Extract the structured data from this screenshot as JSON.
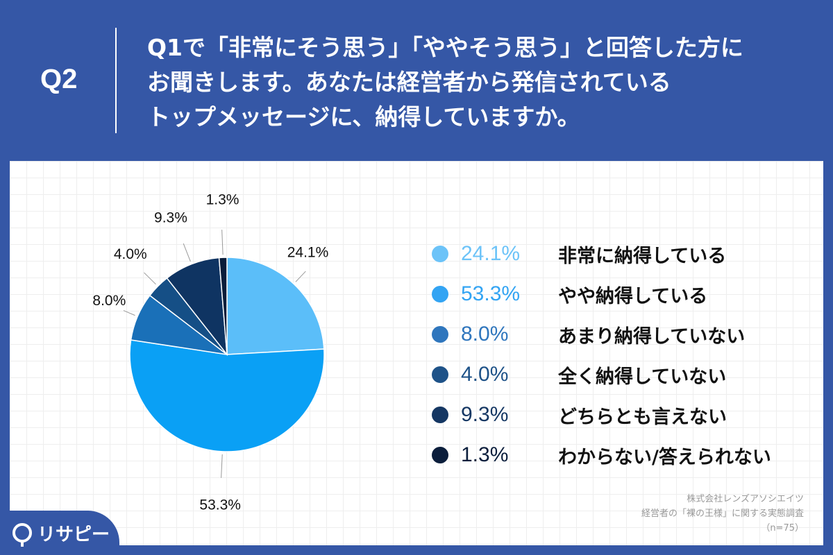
{
  "header": {
    "qnum": "Q2",
    "question_lines": [
      "Q1で「非常にそう思う」「ややそう思う」と回答した方に",
      "お聞きします。あなたは経営者から発信されている",
      "トップメッセージに、納得していますか。"
    ]
  },
  "chart_data": {
    "type": "pie",
    "slices": [
      {
        "label": "非常に納得している",
        "value": 24.1,
        "display": "24.1%",
        "color": "#5bbef9"
      },
      {
        "label": "やや納得している",
        "value": 53.3,
        "display": "53.3%",
        "color": "#0aa0f5"
      },
      {
        "label": "あまり納得していない",
        "value": 8.0,
        "display": "8.0%",
        "color": "#1a70b8"
      },
      {
        "label": "全く納得していない",
        "value": 4.0,
        "display": "4.0%",
        "color": "#154f86"
      },
      {
        "label": "どちらとも言えない",
        "value": 9.3,
        "display": "9.3%",
        "color": "#0f3462"
      },
      {
        "label": "わからない/答えられない",
        "value": 1.3,
        "display": "1.3%",
        "color": "#0a1d3a"
      }
    ],
    "legend_placement": "right",
    "legend_colors": [
      "#6cc3f8",
      "#33a4f3",
      "#2f76bd",
      "#1e5288",
      "#153763",
      "#0b1e3c"
    ]
  },
  "source": {
    "company": "株式会社レンズアソシエイツ",
    "survey": "経営者の「裸の王様」に関する実態調査",
    "n": "（n=75）"
  },
  "logo": {
    "text": "リサピー"
  }
}
